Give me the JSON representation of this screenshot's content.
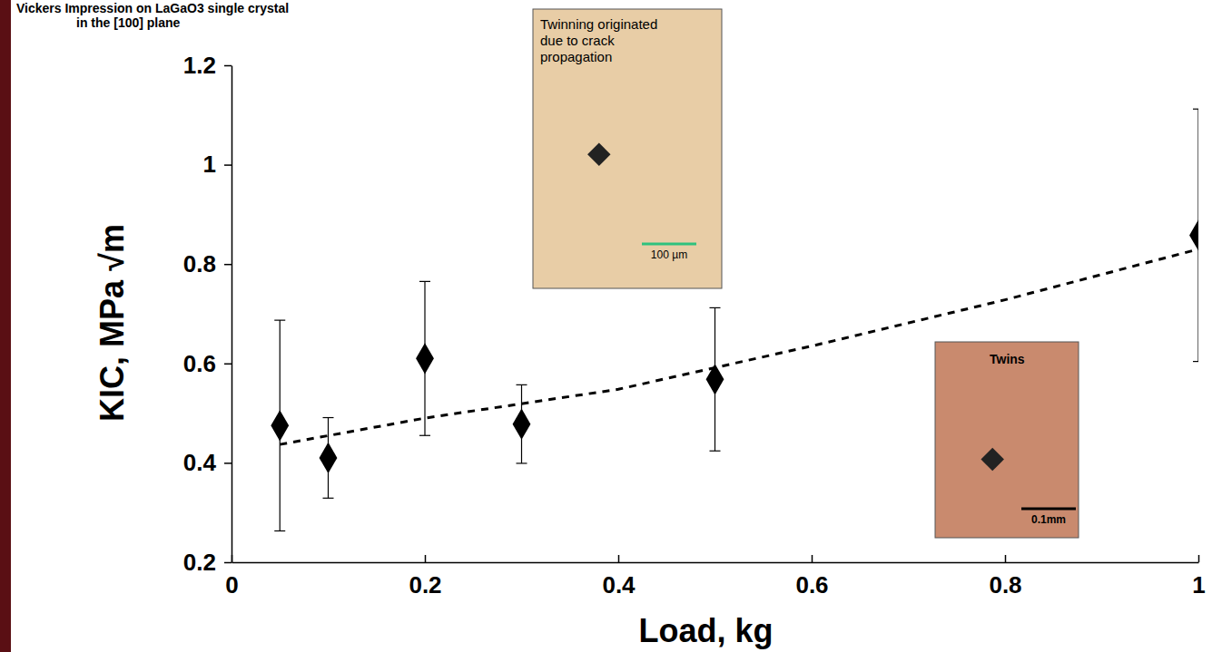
{
  "chart_data": {
    "type": "scatter",
    "title": [
      "Vickers Impression on LaGaO3 single crystal",
      "in the [100] plane"
    ],
    "x_label": "Load, kg",
    "y_label": "KIC, MPa √m",
    "xlim": [
      0,
      1
    ],
    "xticks": [
      0,
      0.2,
      0.4,
      0.6,
      0.8,
      1
    ],
    "ylim": [
      0.2,
      1.2
    ],
    "yticks": [
      0.2,
      0.4,
      0.6,
      0.8,
      1,
      1.2
    ],
    "grid": false,
    "series": [
      {
        "type": "scatter",
        "marker": "diamond",
        "color": "#000000",
        "x": [
          0.05,
          0.1,
          0.2,
          0.3,
          0.5,
          1.0
        ],
        "values": [
          0.475,
          0.41,
          0.61,
          0.478,
          0.568,
          0.858
        ],
        "error": [
          0.212,
          0.081,
          0.155,
          0.079,
          0.144,
          0.254
        ]
      },
      {
        "type": "line",
        "line_style": "dashed",
        "color": "#000000",
        "x": [
          0.05,
          0.2,
          0.4,
          0.6,
          0.8,
          1.0
        ],
        "values": [
          0.437,
          0.49,
          0.548,
          0.635,
          0.728,
          0.83
        ]
      }
    ],
    "annotations": [
      {
        "lines": [
          "Twinning originated",
          "due to crack",
          "propagation"
        ],
        "scale_bar": "100 µm"
      },
      {
        "lines": [
          "Twins"
        ],
        "scale_bar": "0.1mm"
      }
    ]
  }
}
